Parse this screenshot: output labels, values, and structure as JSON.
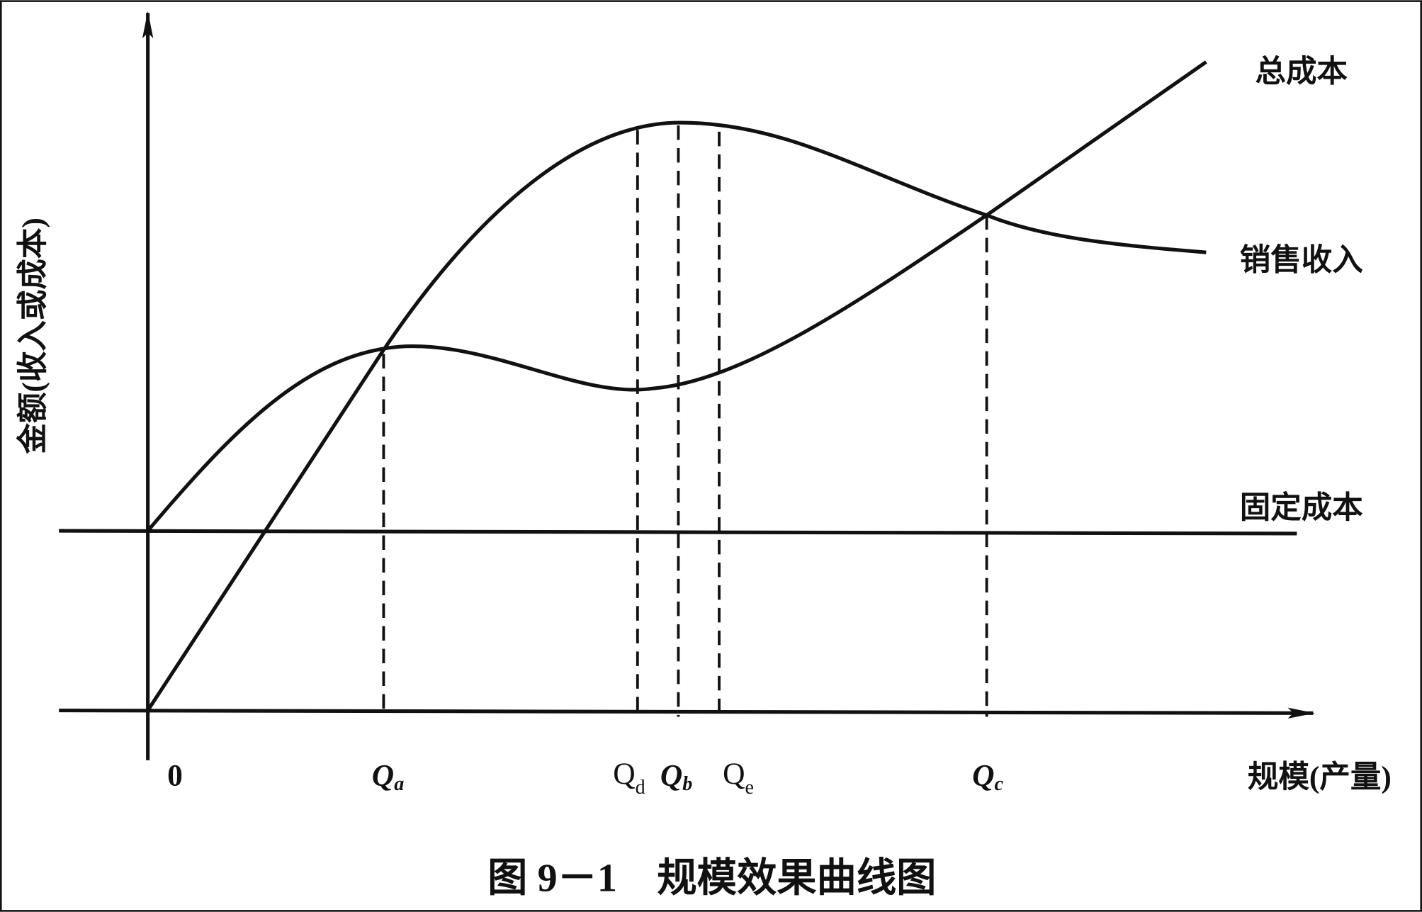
{
  "y_axis_label": "金额(收入或成本)",
  "x_axis_label": "规模(产量)",
  "origin_label": "0",
  "curves": {
    "total_cost": "总成本",
    "sales_revenue": "销售收入",
    "fixed_cost": "固定成本"
  },
  "points": [
    {
      "letter": "Q",
      "subscript": "a"
    },
    {
      "letter": "Q",
      "subscript": "d"
    },
    {
      "letter": "Q",
      "subscript": "b"
    },
    {
      "letter": "Q",
      "subscript": "e"
    },
    {
      "letter": "Q",
      "subscript": "c"
    }
  ],
  "caption": "图 9－1　规模效果曲线图"
}
